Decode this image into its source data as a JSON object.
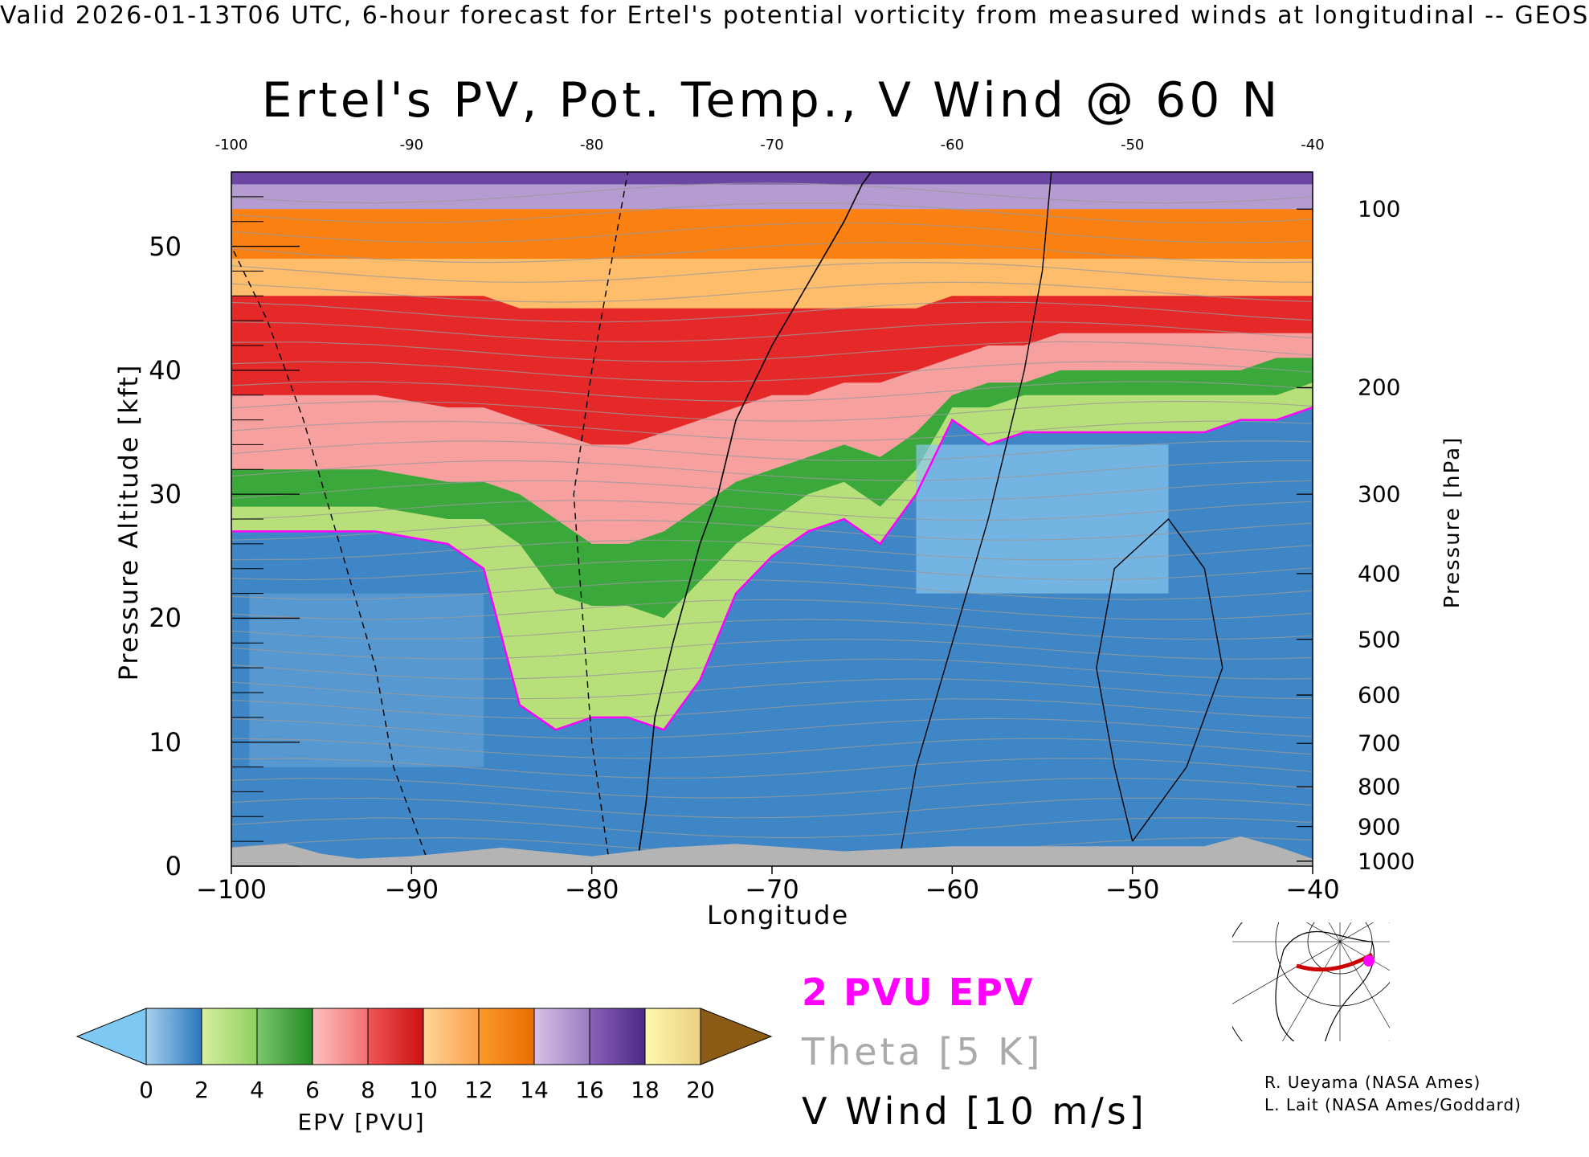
{
  "header": {
    "text": "Valid 2026-01-13T06 UTC, 6-hour forecast for Ertel's potential vorticity from measured winds at longitudinal -- GEOS"
  },
  "chart_data": {
    "type": "heatmap",
    "title": "Ertel's PV, Pot. Temp., V Wind @ 60 N",
    "xlabel": "Longitude",
    "ylabel": "Pressure Altitude [kft]",
    "ylabel_right": "Pressure [hPa]",
    "xlim": [
      -100,
      -40
    ],
    "ylim": [
      0,
      56
    ],
    "x_ticks_top": [
      "-100",
      "-90",
      "-80",
      "-70",
      "-60",
      "-50",
      "-40"
    ],
    "x_ticks_bottom": [
      "−100",
      "−90",
      "−80",
      "−70",
      "−60",
      "−50",
      "−40"
    ],
    "x_tick_values": [
      -100,
      -90,
      -80,
      -70,
      -60,
      -50,
      -40
    ],
    "y_ticks_left": [
      "0",
      "10",
      "20",
      "30",
      "40",
      "50"
    ],
    "y_tick_values_left": [
      0,
      10,
      20,
      30,
      40,
      50
    ],
    "y_ticks_right": [
      {
        "label": "100",
        "kft": 53.0
      },
      {
        "label": "200",
        "kft": 38.6
      },
      {
        "label": "300",
        "kft": 30.0
      },
      {
        "label": "400",
        "kft": 23.6
      },
      {
        "label": "500",
        "kft": 18.3
      },
      {
        "label": "600",
        "kft": 13.8
      },
      {
        "label": "700",
        "kft": 9.9
      },
      {
        "label": "800",
        "kft": 6.4
      },
      {
        "label": "900",
        "kft": 3.2
      },
      {
        "label": "1000",
        "kft": 0.4
      }
    ],
    "tropopause_2pvu_kft": {
      "x": [
        -100,
        -96,
        -92,
        -88,
        -86,
        -84,
        -82,
        -80,
        -78,
        -76,
        -74,
        -72,
        -70,
        -68,
        -66,
        -64,
        -62,
        -60,
        -58,
        -56,
        -54,
        -52,
        -50,
        -48,
        -46,
        -44,
        -42,
        -40
      ],
      "y": [
        27,
        27,
        27,
        26,
        24,
        13,
        11,
        12,
        12,
        11,
        15,
        22,
        25,
        27,
        28,
        26,
        30,
        36,
        34,
        35,
        35,
        35,
        35,
        35,
        35,
        36,
        36,
        37
      ]
    },
    "epv_layers_kft": [
      {
        "pvu": "0-2",
        "color": "#3f86c6",
        "top": [
          27,
          27,
          27,
          26,
          24,
          13,
          11,
          12,
          12,
          11,
          15,
          22,
          25,
          27,
          28,
          26,
          30,
          36,
          34,
          35,
          35,
          35,
          35,
          35,
          35,
          36,
          36,
          37
        ]
      },
      {
        "pvu": "2-4",
        "color": "#b8e07a",
        "top": [
          29,
          29,
          29,
          28,
          28,
          26,
          22,
          21,
          21,
          20,
          23,
          26,
          28,
          30,
          31,
          29,
          32,
          37,
          37,
          38,
          38,
          38,
          38,
          38,
          38,
          38,
          38,
          39
        ]
      },
      {
        "pvu": "4-6",
        "color": "#3aa83a",
        "top": [
          32,
          32,
          32,
          31,
          31,
          30,
          28,
          26,
          26,
          27,
          29,
          31,
          32,
          33,
          34,
          33,
          35,
          38,
          39,
          39,
          40,
          40,
          40,
          40,
          40,
          40,
          41,
          41
        ]
      },
      {
        "pvu": "6-8",
        "color": "#f7a0a0",
        "top": [
          38,
          38,
          38,
          37,
          37,
          36,
          35,
          34,
          34,
          35,
          36,
          37,
          38,
          38,
          39,
          39,
          40,
          41,
          42,
          42,
          43,
          43,
          43,
          43,
          43,
          43,
          43,
          43
        ]
      },
      {
        "pvu": "8-10",
        "color": "#e52929",
        "top": [
          46,
          46,
          46,
          46,
          46,
          45,
          45,
          45,
          45,
          45,
          45,
          45,
          45,
          45,
          45,
          45,
          45,
          46,
          46,
          46,
          46,
          46,
          46,
          46,
          46,
          46,
          46,
          46
        ]
      },
      {
        "pvu": "10-12",
        "color": "#fdbd6b",
        "top": [
          49,
          49,
          49,
          49,
          49,
          49,
          49,
          49,
          49,
          49,
          49,
          49,
          49,
          49,
          49,
          49,
          49,
          49,
          49,
          49,
          49,
          49,
          49,
          49,
          49,
          49,
          49,
          49
        ]
      },
      {
        "pvu": "12-14",
        "color": "#fb8112",
        "top": [
          53,
          53,
          53,
          53,
          53,
          53,
          53,
          53,
          53,
          53,
          53,
          53,
          53,
          53,
          53,
          53,
          53,
          53,
          53,
          53,
          53,
          53,
          53,
          53,
          53,
          53,
          53,
          53
        ]
      },
      {
        "pvu": "14-16",
        "color": "#b59cd0",
        "top": [
          55,
          55,
          55,
          55,
          55,
          55,
          55,
          55,
          55,
          55,
          55,
          55,
          55,
          55,
          55,
          55,
          55,
          55,
          55,
          55,
          55,
          55,
          55,
          55,
          55,
          55,
          55,
          55
        ]
      },
      {
        "pvu": "16-18",
        "color": "#6b46a3",
        "top": [
          56,
          56,
          56,
          56,
          56,
          56,
          56,
          56,
          56,
          56,
          56,
          56,
          56,
          56,
          56,
          56,
          56,
          56,
          56,
          56,
          56,
          56,
          56,
          56,
          56,
          56,
          56,
          56
        ]
      }
    ],
    "surface_kft": {
      "x": [
        -100,
        -97,
        -95,
        -93,
        -90,
        -85,
        -80,
        -76,
        -72,
        -66,
        -60,
        -55,
        -50,
        -46,
        -44,
        -42,
        -40
      ],
      "y": [
        1.5,
        1.8,
        1.0,
        0.6,
        0.8,
        1.5,
        0.8,
        1.5,
        1.8,
        1.2,
        1.6,
        1.6,
        1.6,
        1.6,
        2.4,
        1.6,
        0.6
      ]
    },
    "v_wind_zero_line": {
      "x": [
        -77.5,
        -77.0,
        -76.5,
        -75.5,
        -74.0,
        -73.0,
        -72.0,
        -70.0,
        -68.0,
        -66.0,
        -65.0,
        -64.5
      ],
      "y": [
        0,
        5,
        12,
        18,
        26,
        30,
        36,
        42,
        47,
        52,
        55,
        56
      ]
    }
  },
  "legend": {
    "pvu_label": "2 PVU EPV",
    "theta_label": "Theta [5 K]",
    "vwind_label": "V Wind [10 m/s]"
  },
  "colorbar": {
    "label": "EPV [PVU]",
    "ticks": [
      "0",
      "2",
      "4",
      "6",
      "8",
      "10",
      "12",
      "14",
      "16",
      "18",
      "20"
    ],
    "under_color": "#7ec8f4",
    "over_color": "#8b5a14",
    "colors": [
      [
        "#a7d1ef",
        "#2a76bd"
      ],
      [
        "#d8efa0",
        "#8fcf5f"
      ],
      [
        "#7cc76b",
        "#228b22"
      ],
      [
        "#ffc0c0",
        "#f07070"
      ],
      [
        "#f05555",
        "#cc1111"
      ],
      [
        "#fdd598",
        "#fba04a"
      ],
      [
        "#fc9a2a",
        "#e86e00"
      ],
      [
        "#d6c2e6",
        "#9a7bc0"
      ],
      [
        "#8a62b8",
        "#4b2a86"
      ],
      [
        "#fff8b0",
        "#ead080"
      ]
    ]
  },
  "map_inset": {
    "marker_color": "#ff00ff",
    "track_color": "#cc0000"
  },
  "credits": [
    "R. Ueyama (NASA Ames)",
    "L. Lait (NASA Ames/Goddard)"
  ]
}
